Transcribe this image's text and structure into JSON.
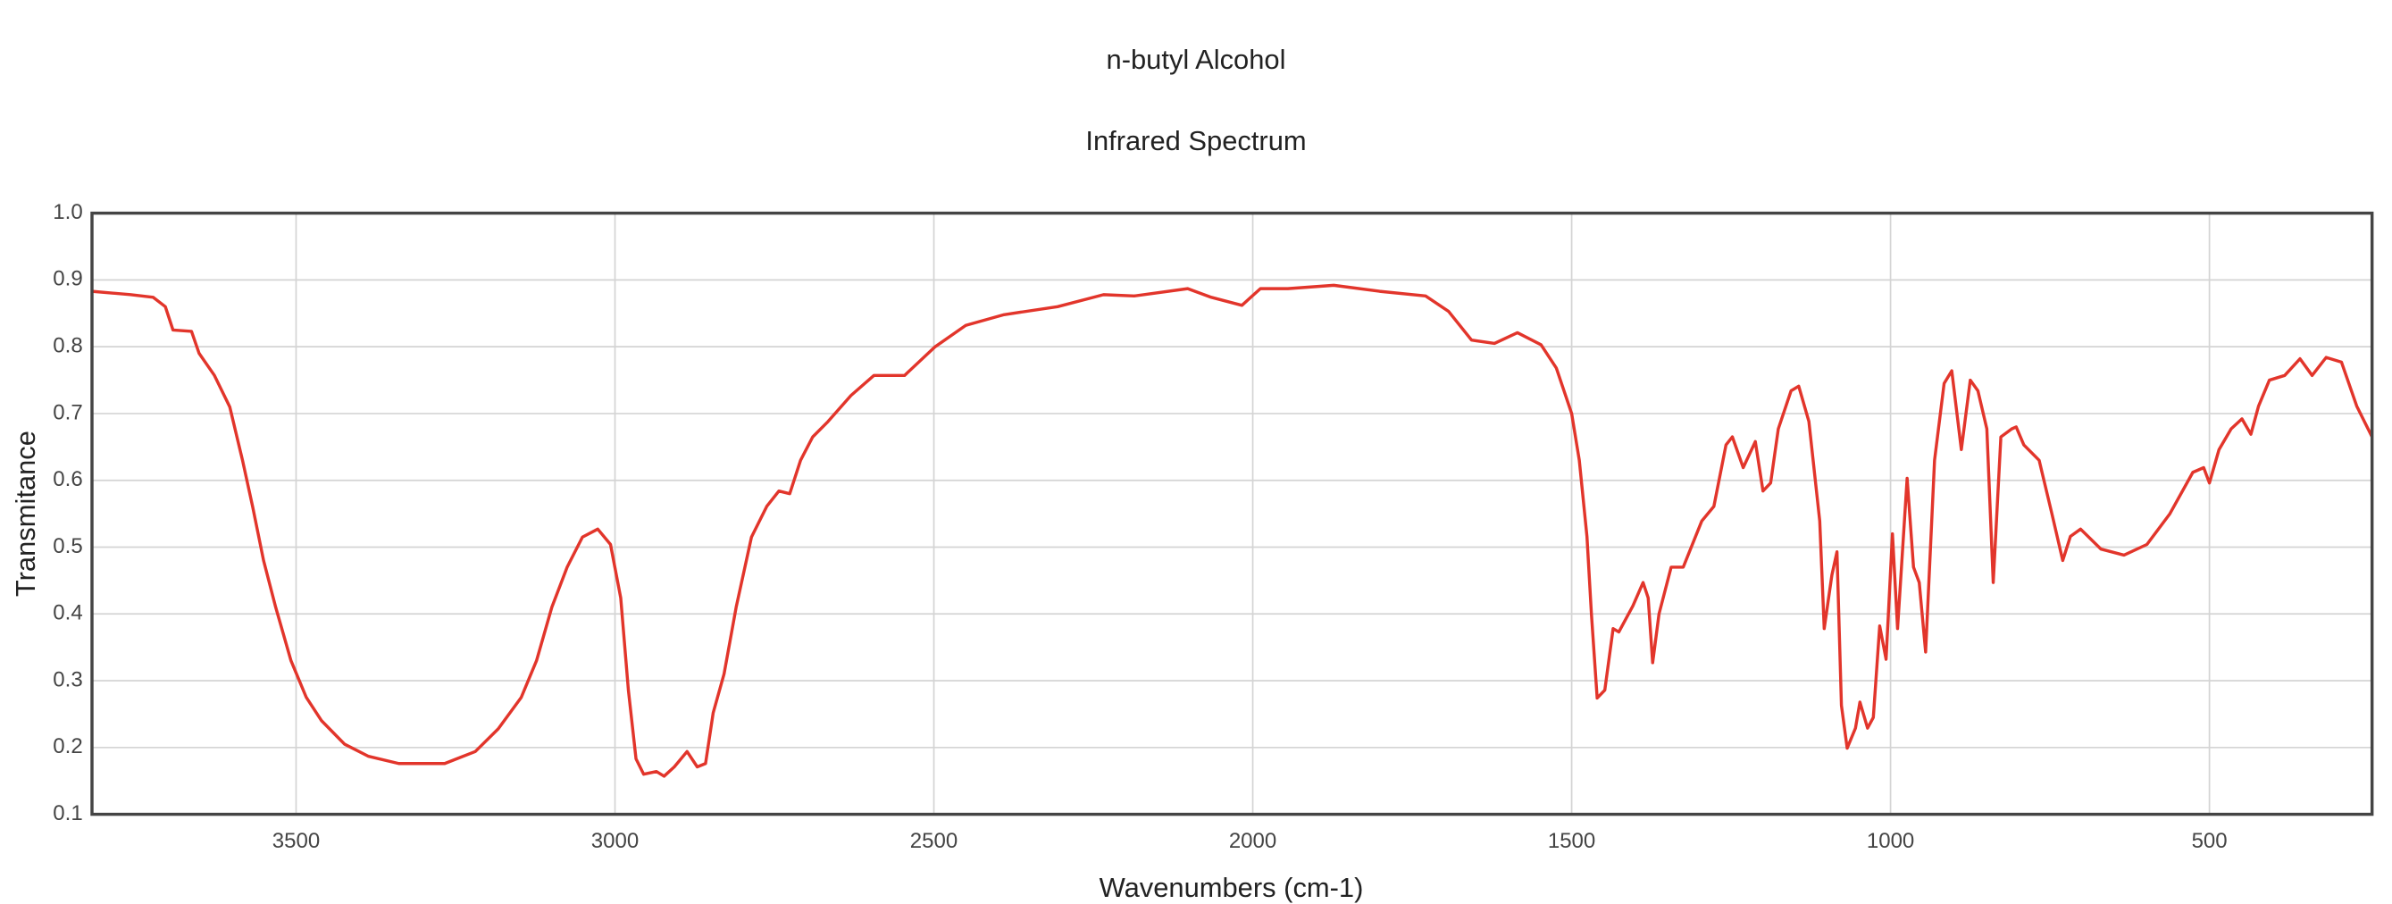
{
  "chart_data": {
    "type": "line",
    "title": "n-butyl Alcohol",
    "subtitle": "Infrared Spectrum",
    "x_label": "Wavenumbers (cm-1)",
    "y_label": "Transmitance",
    "xlim": [
      3820,
      245
    ],
    "xticks": [
      3500,
      3000,
      2500,
      2000,
      1500,
      1000,
      500
    ],
    "ylim": [
      0.1,
      1.0
    ],
    "yticks": [
      0.1,
      0.2,
      0.3,
      0.4,
      0.5,
      0.6,
      0.7,
      0.8,
      0.9,
      {
        "value": 1.0,
        "label": "1.0"
      }
    ],
    "grid": true,
    "series": [
      {
        "color": "#e2352b",
        "x": [
          3820,
          3760,
          3724,
          3705,
          3693,
          3664,
          3652,
          3628,
          3604,
          3584,
          3568,
          3551,
          3532,
          3508,
          3484,
          3460,
          3424,
          3387,
          3339,
          3267,
          3219,
          3183,
          3147,
          3123,
          3099,
          3075,
          3051,
          3027,
          3007,
          2991,
          2979,
          2967,
          2955,
          2935,
          2923,
          2907,
          2887,
          2871,
          2858,
          2846,
          2829,
          2810,
          2786,
          2762,
          2743,
          2726,
          2709,
          2690,
          2666,
          2630,
          2594,
          2546,
          2498,
          2450,
          2390,
          2306,
          2234,
          2186,
          2102,
          2065,
          2017,
          1988,
          1945,
          1873,
          1801,
          1729,
          1693,
          1657,
          1621,
          1585,
          1548,
          1524,
          1500,
          1488,
          1476,
          1469,
          1460,
          1448,
          1435,
          1426,
          1404,
          1388,
          1380,
          1373,
          1363,
          1344,
          1325,
          1296,
          1277,
          1258,
          1248,
          1231,
          1212,
          1200,
          1188,
          1176,
          1156,
          1144,
          1128,
          1111,
          1104,
          1092,
          1084,
          1077,
          1068,
          1055,
          1048,
          1036,
          1027,
          1017,
          1007,
          997,
          989,
          974,
          964,
          955,
          945,
          931,
          916,
          904,
          889,
          875,
          863,
          849,
          839,
          827,
          810,
          803,
          791,
          767,
          747,
          730,
          718,
          702,
          670,
          634,
          598,
          562,
          526,
          509,
          500,
          485,
          466,
          449,
          435,
          423,
          406,
          382,
          358,
          339,
          317,
          293,
          269,
          245
        ],
        "values": [
          0.883,
          0.878,
          0.874,
          0.86,
          0.825,
          0.823,
          0.79,
          0.757,
          0.71,
          0.63,
          0.56,
          0.48,
          0.41,
          0.33,
          0.275,
          0.24,
          0.205,
          0.187,
          0.176,
          0.176,
          0.194,
          0.228,
          0.275,
          0.33,
          0.41,
          0.47,
          0.515,
          0.527,
          0.504,
          0.424,
          0.286,
          0.183,
          0.16,
          0.164,
          0.157,
          0.171,
          0.194,
          0.171,
          0.176,
          0.252,
          0.31,
          0.41,
          0.515,
          0.561,
          0.584,
          0.58,
          0.63,
          0.665,
          0.688,
          0.727,
          0.757,
          0.757,
          0.8,
          0.832,
          0.848,
          0.86,
          0.878,
          0.876,
          0.887,
          0.874,
          0.862,
          0.887,
          0.887,
          0.892,
          0.883,
          0.876,
          0.853,
          0.81,
          0.805,
          0.821,
          0.803,
          0.768,
          0.7,
          0.63,
          0.516,
          0.4,
          0.274,
          0.286,
          0.378,
          0.373,
          0.412,
          0.447,
          0.424,
          0.327,
          0.4,
          0.47,
          0.47,
          0.539,
          0.561,
          0.653,
          0.665,
          0.619,
          0.658,
          0.584,
          0.596,
          0.677,
          0.734,
          0.741,
          0.688,
          0.539,
          0.378,
          0.458,
          0.493,
          0.263,
          0.199,
          0.229,
          0.268,
          0.229,
          0.245,
          0.382,
          0.332,
          0.52,
          0.378,
          0.603,
          0.47,
          0.447,
          0.343,
          0.63,
          0.745,
          0.764,
          0.646,
          0.75,
          0.734,
          0.677,
          0.447,
          0.665,
          0.677,
          0.68,
          0.653,
          0.63,
          0.55,
          0.48,
          0.516,
          0.527,
          0.497,
          0.488,
          0.504,
          0.55,
          0.612,
          0.619,
          0.596,
          0.646,
          0.677,
          0.692,
          0.669,
          0.711,
          0.75,
          0.757,
          0.782,
          0.757,
          0.784,
          0.777,
          0.711,
          0.665
        ]
      }
    ]
  }
}
